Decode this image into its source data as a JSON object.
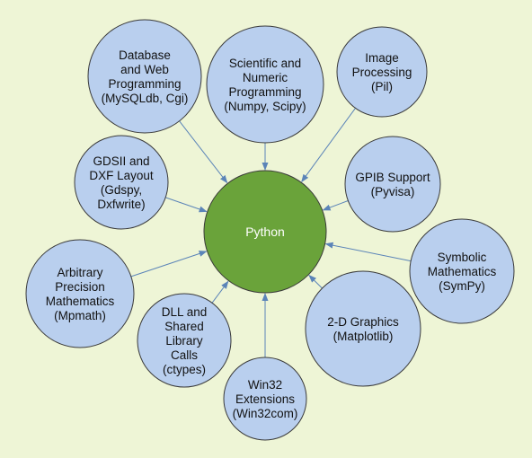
{
  "colors": {
    "background": "#eef5d6",
    "node_fill": "#b9cfee",
    "center_fill": "#6aa33a",
    "edge": "#5b84b8"
  },
  "center": {
    "label": "Python"
  },
  "nodes": [
    {
      "id": "database-web",
      "lines": [
        "Database",
        "and Web",
        "Programming",
        "(MySQLdb, Cgi)"
      ]
    },
    {
      "id": "scientific-numeric",
      "lines": [
        "Scientific and",
        "Numeric",
        "Programming",
        "(Numpy, Scipy)"
      ]
    },
    {
      "id": "image-processing",
      "lines": [
        "Image",
        "Processing",
        "(Pil)"
      ]
    },
    {
      "id": "gdsii-dxf",
      "lines": [
        "GDSII and",
        "DXF Layout",
        "(Gdspy,",
        "Dxfwrite)"
      ]
    },
    {
      "id": "gpib-support",
      "lines": [
        "GPIB Support",
        "(Pyvisa)"
      ]
    },
    {
      "id": "symbolic-math",
      "lines": [
        "Symbolic",
        "Mathematics",
        "(SymPy)"
      ]
    },
    {
      "id": "arbitrary-precision",
      "lines": [
        "Arbitrary",
        "Precision",
        "Mathematics",
        "(Mpmath)"
      ]
    },
    {
      "id": "dll-shared",
      "lines": [
        "DLL and",
        "Shared",
        "Library",
        "Calls",
        "(ctypes)"
      ]
    },
    {
      "id": "graphics-2d",
      "lines": [
        "2-D Graphics",
        "(Matplotlib)"
      ]
    },
    {
      "id": "win32",
      "lines": [
        "Win32",
        "Extensions",
        "(Win32com)"
      ]
    }
  ]
}
